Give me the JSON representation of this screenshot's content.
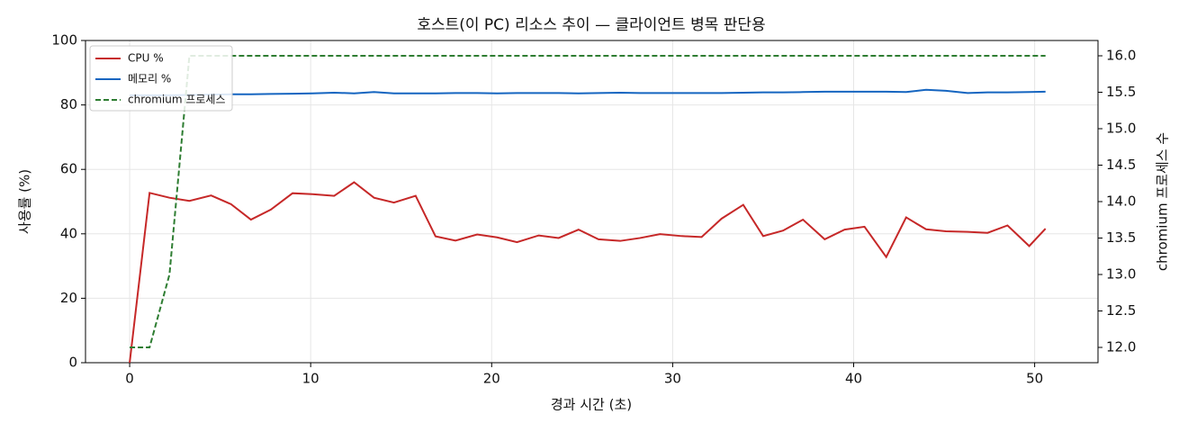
{
  "chart_data": {
    "type": "line",
    "title": "호스트(이 PC) 리소스 추이 — 클라이언트 병목 판단용",
    "x_label": "경과 시간 (초)",
    "y_label": "사용률 (%)",
    "y2_label": "chromium 프로세스 수",
    "x": [
      0,
      1.1,
      2.2,
      3.3,
      4.5,
      5.6,
      6.7,
      7.8,
      9.0,
      10.1,
      11.3,
      12.4,
      13.5,
      14.6,
      15.8,
      16.9,
      18.0,
      19.2,
      20.3,
      21.4,
      22.6,
      23.7,
      24.8,
      25.9,
      27.1,
      28.2,
      29.3,
      30.5,
      31.6,
      32.7,
      33.9,
      35.0,
      36.1,
      37.2,
      38.4,
      39.5,
      40.6,
      41.8,
      42.9,
      44.0,
      45.1,
      46.3,
      47.4,
      48.5,
      49.7,
      50.6
    ],
    "series": [
      {
        "name": "CPU %",
        "color": "#c62828",
        "dash": false,
        "axis": "y",
        "values": [
          0,
          52.7,
          51.2,
          50.2,
          51.9,
          49.2,
          44.4,
          47.5,
          52.6,
          52.3,
          51.8,
          56.0,
          51.2,
          49.7,
          51.8,
          39.2,
          37.9,
          39.8,
          38.9,
          37.4,
          39.5,
          38.7,
          41.3,
          38.3,
          37.8,
          38.7,
          39.9,
          39.3,
          39.0,
          44.7,
          49.0,
          39.3,
          41.0,
          44.4,
          38.3,
          41.3,
          42.2,
          32.8,
          45.1,
          41.4,
          40.8,
          40.6,
          40.3,
          42.6,
          36.2,
          41.6
        ]
      },
      {
        "name": "메모리 %",
        "color": "#1565c0",
        "dash": false,
        "axis": "y",
        "values": [
          83.0,
          83.0,
          83.0,
          83.1,
          83.2,
          83.3,
          83.3,
          83.4,
          83.5,
          83.6,
          83.8,
          83.6,
          84.0,
          83.6,
          83.6,
          83.6,
          83.7,
          83.7,
          83.6,
          83.7,
          83.7,
          83.7,
          83.6,
          83.7,
          83.8,
          83.7,
          83.7,
          83.7,
          83.7,
          83.7,
          83.8,
          83.9,
          83.9,
          84.0,
          84.1,
          84.1,
          84.1,
          84.1,
          84.0,
          84.7,
          84.4,
          83.7,
          83.9,
          83.9,
          84.0,
          84.1
        ]
      },
      {
        "name": "chromium 프로세스",
        "color": "#2e7d32",
        "dash": true,
        "axis": "y2",
        "values": [
          12,
          12,
          13,
          16,
          16,
          16,
          16,
          16,
          16,
          16,
          16,
          16,
          16,
          16,
          16,
          16,
          16,
          16,
          16,
          16,
          16,
          16,
          16,
          16,
          16,
          16,
          16,
          16,
          16,
          16,
          16,
          16,
          16,
          16,
          16,
          16,
          16,
          16,
          16,
          16,
          16,
          16,
          16,
          16,
          16,
          16
        ]
      }
    ],
    "xlim": [
      -2.44,
      53.5
    ],
    "xticks": [
      0,
      10,
      20,
      30,
      40,
      50
    ],
    "ylim": [
      0,
      100
    ],
    "yticks": [
      0,
      20,
      40,
      60,
      80,
      100
    ],
    "y2lim": [
      11.79,
      16.21
    ],
    "y2ticks": [
      {
        "value": 12,
        "label": "12.0"
      },
      12.5,
      {
        "value": 13,
        "label": "13.0"
      },
      13.5,
      {
        "value": 14,
        "label": "14.0"
      },
      14.5,
      {
        "value": 15,
        "label": "15.0"
      },
      15.5,
      {
        "value": 16,
        "label": "16.0"
      }
    ],
    "grid": true,
    "legend": "upper-left"
  }
}
